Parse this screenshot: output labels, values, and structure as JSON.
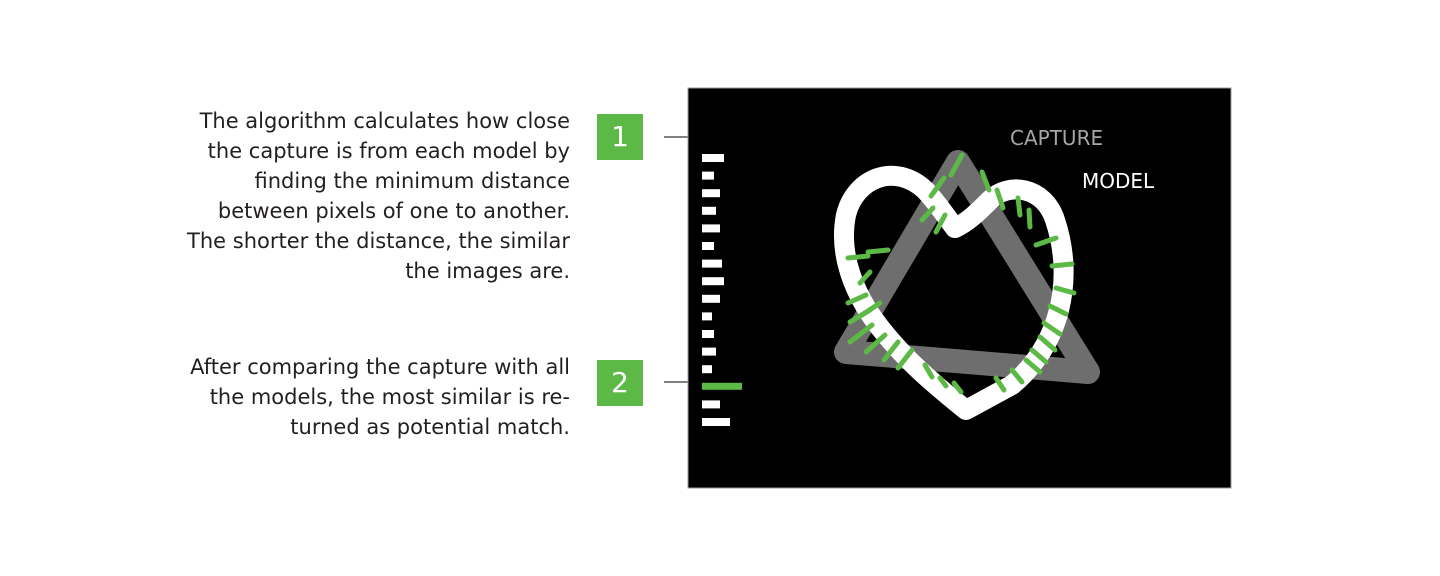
{
  "steps": [
    {
      "number": "1",
      "lines": [
        "The algorithm calculates how close",
        "the capture is from each model by",
        "finding the minimum distance",
        "between pixels of one to another.",
        "The shorter the distance, the similar",
        "the images are."
      ]
    },
    {
      "number": "2",
      "lines": [
        "After comparing the capture with all",
        "the models, the most similar is re-",
        "turned as potential match."
      ]
    }
  ],
  "panel": {
    "capture_label": "CAPTURE",
    "model_label": "MODEL"
  },
  "colors": {
    "accent_green": "#5cb946",
    "panel_background": "#000000",
    "capture_stroke": "#7a7a7a",
    "model_stroke": "#ffffff",
    "bar_color": "#ffffff"
  },
  "distance_bars": {
    "values": [
      0.55,
      0.3,
      0.45,
      0.35,
      0.45,
      0.3,
      0.5,
      0.55,
      0.45,
      0.25,
      0.3,
      0.35,
      0.25,
      1.0,
      0.45,
      0.7
    ],
    "highlighted_index": 13
  }
}
